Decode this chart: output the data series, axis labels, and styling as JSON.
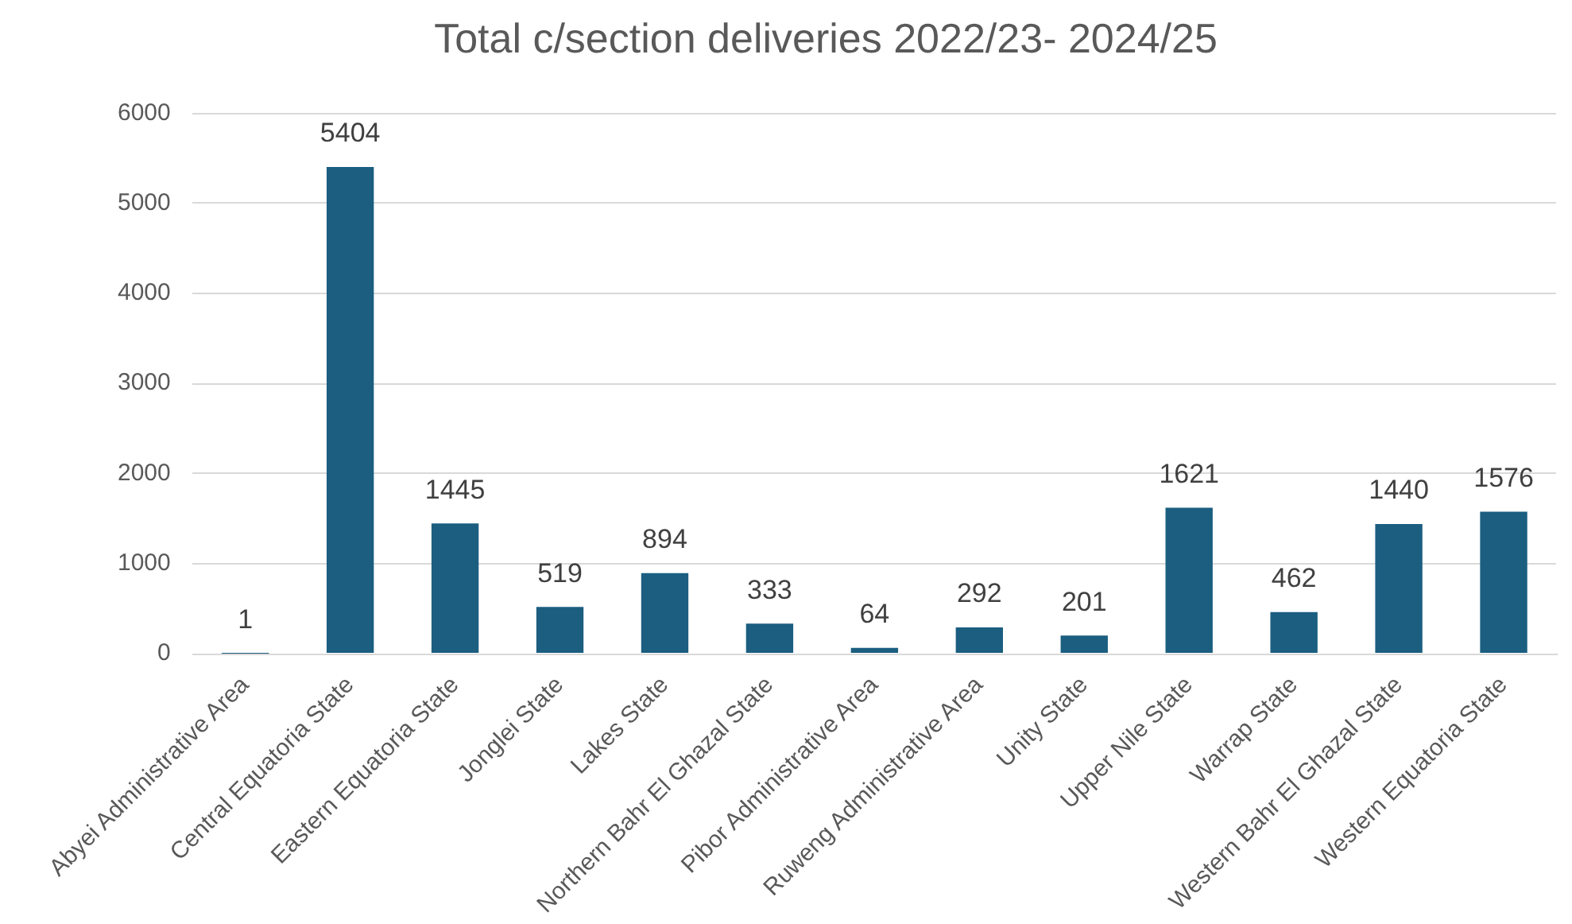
{
  "chart_data": {
    "type": "bar",
    "title": "Total c/section deliveries 2022/23- 2024/25",
    "categories": [
      "Abyei Administrative Area",
      "Central Equatoria State",
      "Eastern Equatoria State",
      "Jonglei State",
      "Lakes State",
      "Northern Bahr El Ghazal State",
      "Pibor Administrative Area",
      "Ruweng Administrative Area",
      "Unity State",
      "Upper Nile State",
      "Warrap State",
      "Western Bahr El Ghazal State",
      "Western Equatoria State"
    ],
    "values": [
      1,
      5404,
      1445,
      519,
      894,
      333,
      64,
      292,
      201,
      1621,
      462,
      1440,
      1576
    ],
    "color": "#1b5e80",
    "ylim": [
      0,
      6000
    ],
    "yticks": [
      0,
      1000,
      2000,
      3000,
      4000,
      5000,
      6000
    ],
    "grid": "y",
    "data_labels": true,
    "legend": false
  }
}
